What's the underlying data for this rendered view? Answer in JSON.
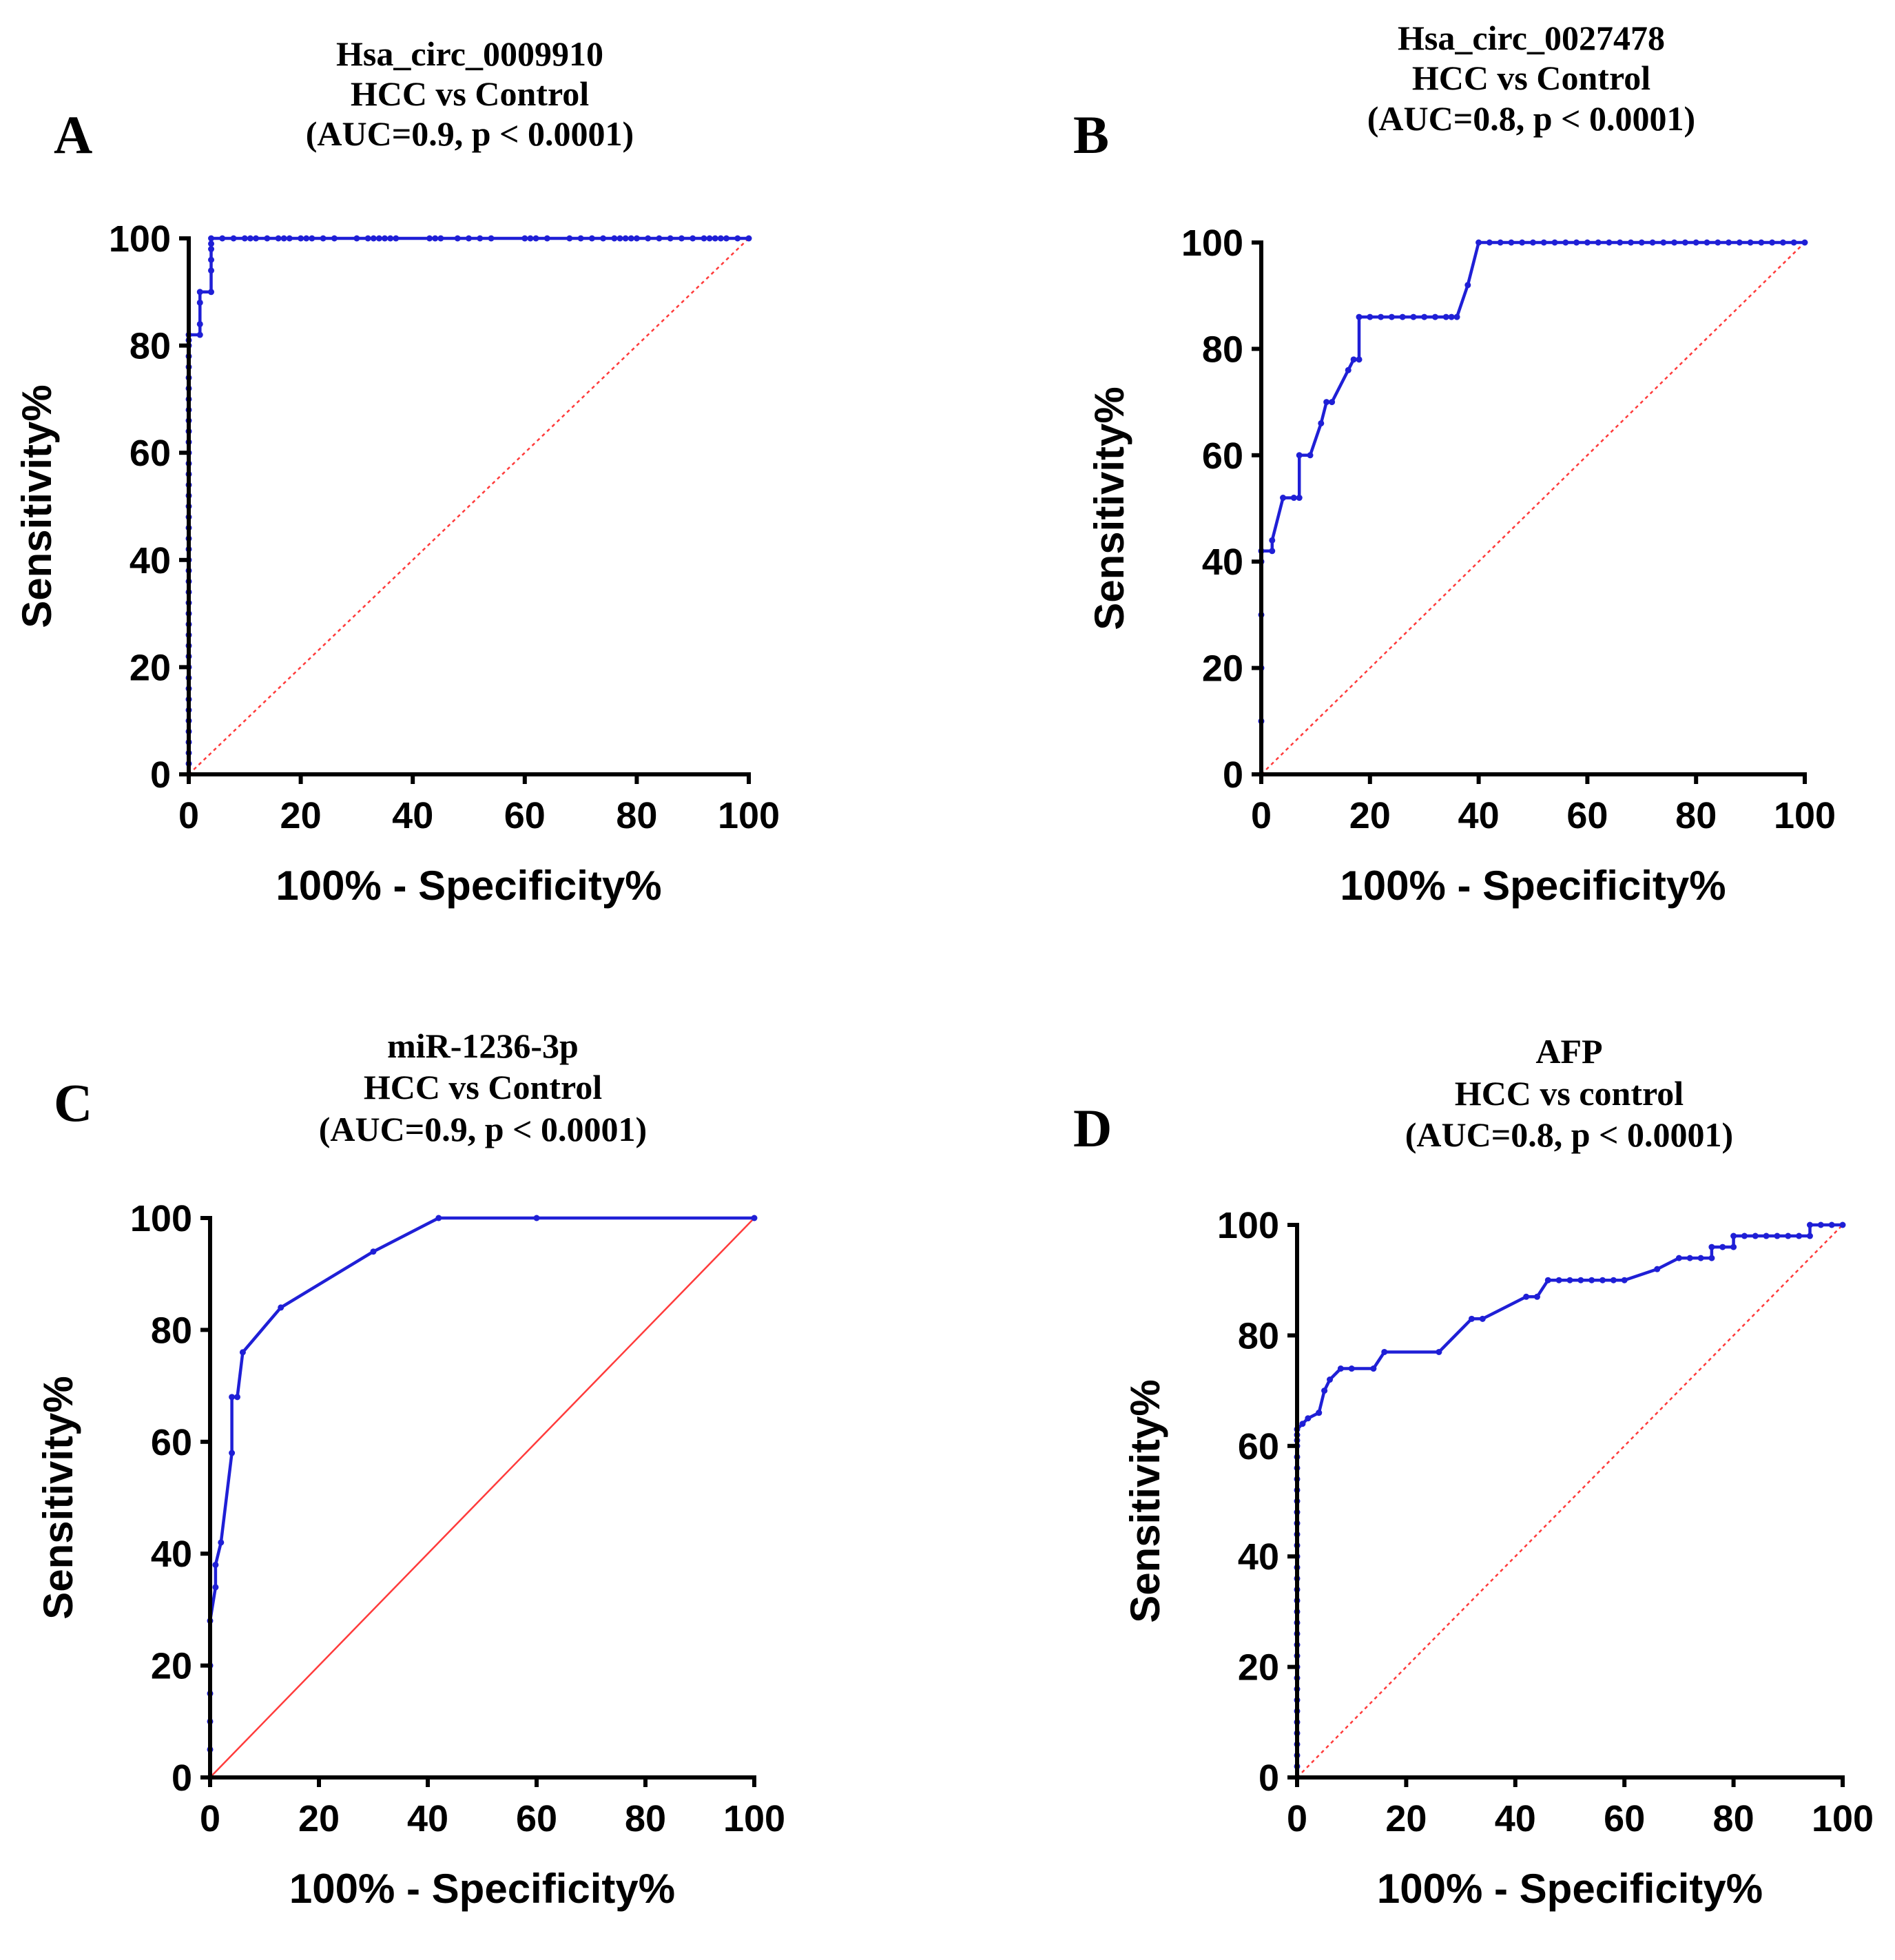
{
  "figure": {
    "colors": {
      "curve": "#1f1fd6",
      "reference": "#ff3b3b",
      "axis": "#000000"
    },
    "panels": [
      {
        "letter": "A",
        "title_lines": [
          "Hsa_circ_0009910",
          "HCC vs Control",
          "(AUC=0.9, p < 0.0001)"
        ],
        "reference_style": "dotted"
      },
      {
        "letter": "B",
        "title_lines": [
          "Hsa_circ_0027478",
          "HCC vs Control",
          "(AUC=0.8, p < 0.0001)"
        ],
        "reference_style": "dotted"
      },
      {
        "letter": "C",
        "title_lines": [
          "miR-1236-3p",
          "HCC vs Control",
          "(AUC=0.9, p < 0.0001)"
        ],
        "reference_style": "solid"
      },
      {
        "letter": "D",
        "title_lines": [
          "AFP",
          "HCC vs control",
          "(AUC=0.8, p < 0.0001)"
        ],
        "reference_style": "dotted"
      }
    ]
  },
  "chart_data": [
    {
      "type": "line",
      "title": "Hsa_circ_0009910 HCC vs Control (AUC=0.9, p < 0.0001)",
      "xlabel": "100% - Specificity%",
      "ylabel": "Sensitivity%",
      "xlim": [
        0,
        100
      ],
      "ylim": [
        0,
        100
      ],
      "xticks": [
        "0",
        "20",
        "40",
        "60",
        "80",
        "100"
      ],
      "yticks": [
        "0",
        "20",
        "40",
        "60",
        "80",
        "100"
      ],
      "auc": 0.9,
      "p_value": "< 0.0001",
      "series": [
        {
          "name": "ROC curve",
          "x": [
            0,
            0,
            0,
            0,
            0,
            0,
            0,
            0,
            0,
            0,
            0,
            0,
            0,
            0,
            0,
            0,
            0,
            0,
            0,
            0,
            0,
            0,
            0,
            0,
            0,
            0,
            0,
            0,
            0,
            0,
            0,
            0,
            0,
            0,
            0,
            0,
            0,
            0,
            0,
            0,
            0,
            0,
            0,
            2,
            2,
            2,
            2,
            4,
            4,
            4,
            4,
            4,
            4,
            6,
            8,
            10,
            11,
            12,
            14,
            16,
            17,
            18,
            20,
            21,
            22,
            24,
            26,
            30,
            32,
            33,
            34,
            35,
            36,
            37,
            43,
            44,
            45,
            48,
            50,
            52,
            54,
            60,
            61,
            62,
            64,
            68,
            70,
            72,
            74,
            76,
            77,
            78,
            79,
            80,
            82,
            84,
            86,
            88,
            90,
            92,
            93,
            94,
            95,
            96,
            98,
            100
          ],
          "y": [
            0,
            2,
            4,
            6,
            8,
            10,
            12,
            14,
            16,
            18,
            20,
            22,
            24,
            26,
            28,
            30,
            32,
            34,
            36,
            38,
            40,
            42,
            44,
            46,
            48,
            50,
            52,
            54,
            56,
            58,
            60,
            62,
            64,
            66,
            68,
            70,
            72,
            74,
            76,
            78,
            80,
            81,
            82,
            82,
            84,
            88,
            90,
            90,
            94,
            96,
            98,
            99,
            100,
            100,
            100,
            100,
            100,
            100,
            100,
            100,
            100,
            100,
            100,
            100,
            100,
            100,
            100,
            100,
            100,
            100,
            100,
            100,
            100,
            100,
            100,
            100,
            100,
            100,
            100,
            100,
            100,
            100,
            100,
            100,
            100,
            100,
            100,
            100,
            100,
            100,
            100,
            100,
            100,
            100,
            100,
            100,
            100,
            100,
            100,
            100,
            100,
            100,
            100,
            100,
            100,
            100
          ]
        },
        {
          "name": "Reference line",
          "x": [
            0,
            100
          ],
          "y": [
            0,
            100
          ]
        }
      ]
    },
    {
      "type": "line",
      "title": "Hsa_circ_0027478 HCC vs Control (AUC=0.8, p < 0.0001)",
      "xlabel": "100% - Specificity%",
      "ylabel": "Sensitivity%",
      "xlim": [
        0,
        100
      ],
      "ylim": [
        0,
        100
      ],
      "xticks": [
        "0",
        "20",
        "40",
        "60",
        "80",
        "100"
      ],
      "yticks": [
        "0",
        "20",
        "40",
        "60",
        "80",
        "100"
      ],
      "auc": 0.8,
      "p_value": "< 0.0001",
      "series": [
        {
          "name": "ROC curve",
          "x": [
            0,
            0,
            0,
            0,
            0,
            0,
            2,
            2,
            4,
            6,
            7,
            7,
            9,
            11,
            12,
            13,
            16,
            17,
            18,
            18,
            20,
            22,
            24,
            26,
            28,
            30,
            32,
            34,
            35,
            36,
            38,
            40,
            42,
            44,
            46,
            48,
            50,
            52,
            54,
            56,
            58,
            60,
            62,
            64,
            66,
            68,
            70,
            72,
            74,
            76,
            78,
            80,
            82,
            84,
            86,
            88,
            90,
            92,
            94,
            96,
            98,
            100
          ],
          "y": [
            0,
            10,
            20,
            30,
            40,
            42,
            42,
            44,
            52,
            52,
            52,
            60,
            60,
            66,
            70,
            70,
            76,
            78,
            78,
            86,
            86,
            86,
            86,
            86,
            86,
            86,
            86,
            86,
            86,
            86,
            92,
            100,
            100,
            100,
            100,
            100,
            100,
            100,
            100,
            100,
            100,
            100,
            100,
            100,
            100,
            100,
            100,
            100,
            100,
            100,
            100,
            100,
            100,
            100,
            100,
            100,
            100,
            100,
            100,
            100,
            100,
            100
          ]
        },
        {
          "name": "Reference line",
          "x": [
            0,
            100
          ],
          "y": [
            0,
            100
          ]
        }
      ]
    },
    {
      "type": "line",
      "title": "miR-1236-3p HCC vs Control (AUC=0.9, p < 0.0001)",
      "xlabel": "100% - Specificity%",
      "ylabel": "Sensitivity%",
      "xlim": [
        0,
        100
      ],
      "ylim": [
        0,
        100
      ],
      "xticks": [
        "0",
        "20",
        "40",
        "60",
        "80",
        "100"
      ],
      "yticks": [
        "0",
        "20",
        "40",
        "60",
        "80",
        "100"
      ],
      "auc": 0.9,
      "p_value": "< 0.0001",
      "series": [
        {
          "name": "ROC curve",
          "x": [
            0,
            0,
            0,
            0,
            0,
            0,
            1,
            1,
            2,
            4,
            4,
            5,
            6,
            13,
            30,
            42,
            60,
            100
          ],
          "y": [
            0,
            5,
            10,
            15,
            20,
            28,
            34,
            38,
            42,
            58,
            68,
            68,
            76,
            84,
            94,
            100,
            100,
            100
          ]
        },
        {
          "name": "Reference line",
          "x": [
            0,
            100
          ],
          "y": [
            0,
            100
          ]
        }
      ]
    },
    {
      "type": "line",
      "title": "AFP HCC vs control (AUC=0.8, p < 0.0001)",
      "xlabel": "100% - Specificity%",
      "ylabel": "Sensitivity%",
      "xlim": [
        0,
        100
      ],
      "ylim": [
        0,
        100
      ],
      "xticks": [
        "0",
        "20",
        "40",
        "60",
        "80",
        "100"
      ],
      "yticks": [
        "0",
        "20",
        "40",
        "60",
        "80",
        "100"
      ],
      "auc": 0.8,
      "p_value": "< 0.0001",
      "series": [
        {
          "name": "ROC curve",
          "x": [
            0,
            0,
            0,
            0,
            0,
            0,
            0,
            0,
            0,
            0,
            0,
            0,
            0,
            0,
            0,
            0,
            0,
            0,
            0,
            0,
            0,
            0,
            0,
            0,
            0,
            0,
            0,
            0,
            0,
            0,
            0,
            0,
            0,
            0,
            1,
            2,
            4,
            4,
            5,
            6,
            8,
            10,
            14,
            16,
            26,
            32,
            34,
            42,
            44,
            46,
            48,
            50,
            52,
            54,
            56,
            58,
            60,
            66,
            70,
            72,
            74,
            76,
            76,
            78,
            80,
            80,
            82,
            84,
            86,
            88,
            90,
            92,
            94,
            94,
            96,
            98,
            100
          ],
          "y": [
            0,
            2,
            4,
            6,
            8,
            10,
            12,
            14,
            16,
            18,
            20,
            22,
            24,
            26,
            28,
            30,
            32,
            34,
            36,
            38,
            40,
            42,
            44,
            46,
            48,
            50,
            52,
            54,
            56,
            58,
            60,
            61,
            62,
            63,
            64,
            65,
            66,
            66,
            70,
            72,
            74,
            74,
            74,
            77,
            77,
            83,
            83,
            87,
            87,
            90,
            90,
            90,
            90,
            90,
            90,
            90,
            90,
            92,
            94,
            94,
            94,
            94,
            96,
            96,
            96,
            98,
            98,
            98,
            98,
            98,
            98,
            98,
            98,
            100,
            100,
            100,
            100
          ]
        },
        {
          "name": "Reference line",
          "x": [
            0,
            100
          ],
          "y": [
            0,
            100
          ]
        }
      ]
    }
  ]
}
